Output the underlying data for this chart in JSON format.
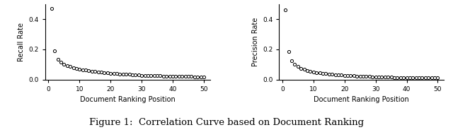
{
  "left_ylabel": "Recall Rate",
  "right_ylabel": "Precision Rate",
  "xlabel": "Document Ranking Position",
  "caption": "Figure 1:  Correlation Curve based on Document Ranking",
  "xlim": [
    -1,
    52
  ],
  "left_ylim": [
    0.0,
    0.5
  ],
  "right_ylim": [
    0.0,
    0.5
  ],
  "left_yticks": [
    0.0,
    0.2,
    0.4
  ],
  "right_yticks": [
    0.0,
    0.2,
    0.4
  ],
  "xticks": [
    0,
    10,
    20,
    30,
    40,
    50
  ],
  "left_x": [
    1,
    2,
    3,
    4,
    5,
    6,
    7,
    8,
    9,
    10,
    11,
    12,
    13,
    14,
    15,
    16,
    17,
    18,
    19,
    20,
    21,
    22,
    23,
    24,
    25,
    26,
    27,
    28,
    29,
    30,
    31,
    32,
    33,
    34,
    35,
    36,
    37,
    38,
    39,
    40,
    41,
    42,
    43,
    44,
    45,
    46,
    47,
    48,
    49,
    50
  ],
  "left_y": [
    0.47,
    0.19,
    0.135,
    0.115,
    0.1,
    0.09,
    0.085,
    0.078,
    0.072,
    0.068,
    0.065,
    0.062,
    0.058,
    0.055,
    0.052,
    0.05,
    0.048,
    0.045,
    0.043,
    0.042,
    0.04,
    0.038,
    0.036,
    0.035,
    0.034,
    0.033,
    0.032,
    0.03,
    0.029,
    0.028,
    0.027,
    0.027,
    0.026,
    0.025,
    0.024,
    0.024,
    0.023,
    0.022,
    0.022,
    0.021,
    0.021,
    0.02,
    0.02,
    0.02,
    0.019,
    0.019,
    0.018,
    0.018,
    0.018,
    0.017
  ],
  "right_x": [
    1,
    2,
    3,
    4,
    5,
    6,
    7,
    8,
    9,
    10,
    11,
    12,
    13,
    14,
    15,
    16,
    17,
    18,
    19,
    20,
    21,
    22,
    23,
    24,
    25,
    26,
    27,
    28,
    29,
    30,
    31,
    32,
    33,
    34,
    35,
    36,
    37,
    38,
    39,
    40,
    41,
    42,
    43,
    44,
    45,
    46,
    47,
    48,
    49,
    50
  ],
  "right_y": [
    0.46,
    0.185,
    0.125,
    0.1,
    0.085,
    0.075,
    0.067,
    0.06,
    0.055,
    0.05,
    0.046,
    0.043,
    0.04,
    0.038,
    0.036,
    0.034,
    0.032,
    0.03,
    0.029,
    0.027,
    0.026,
    0.025,
    0.024,
    0.023,
    0.022,
    0.021,
    0.02,
    0.019,
    0.018,
    0.018,
    0.017,
    0.016,
    0.016,
    0.015,
    0.015,
    0.014,
    0.014,
    0.013,
    0.013,
    0.013,
    0.012,
    0.012,
    0.012,
    0.011,
    0.011,
    0.011,
    0.01,
    0.01,
    0.01,
    0.01
  ],
  "marker": "o",
  "markersize": 3,
  "markerfacecolor": "white",
  "markeredgecolor": "black",
  "markeredgewidth": 0.7,
  "linestyle": "none",
  "caption_fontsize": 9.5,
  "axis_fontsize": 7,
  "tick_fontsize": 6.5
}
